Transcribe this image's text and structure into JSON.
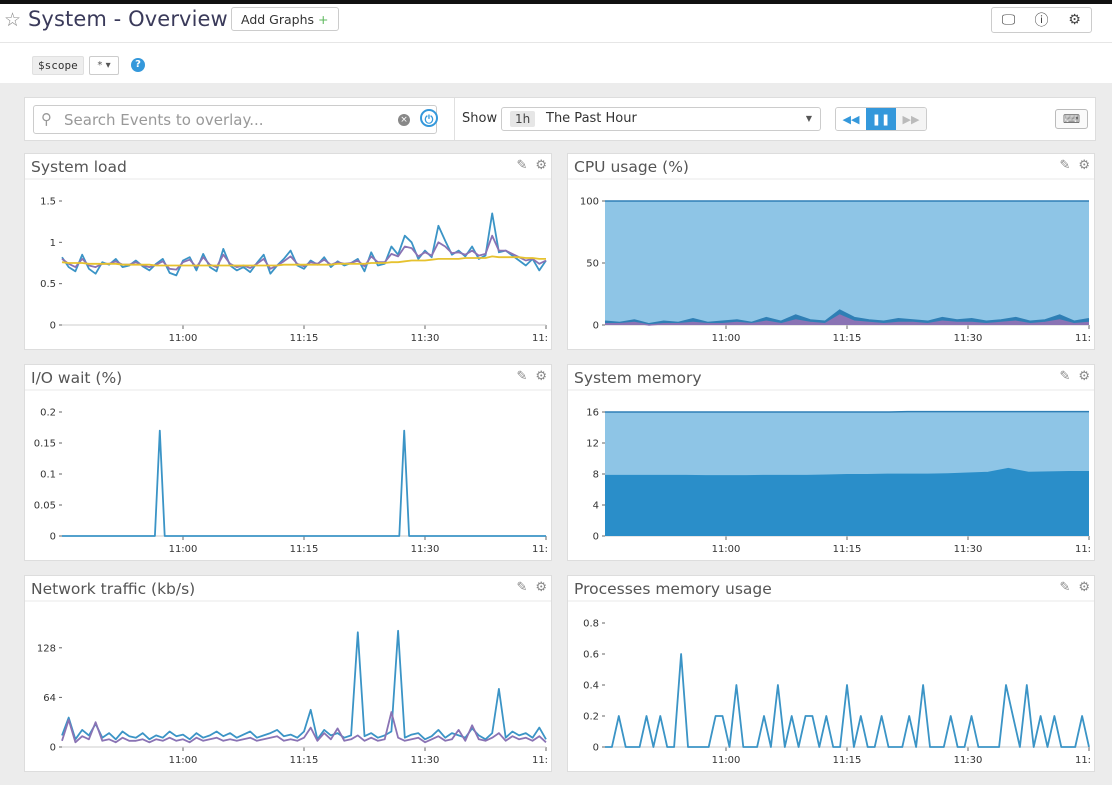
{
  "header": {
    "title": "System - Overview",
    "add_graphs_label": "Add Graphs",
    "add_graphs_plus": "+"
  },
  "scope": {
    "variable": "$scope",
    "value": "*"
  },
  "search": {
    "placeholder": "Search Events to overlay..."
  },
  "timeframe": {
    "show_label": "Show",
    "badge": "1h",
    "label": "The Past Hour"
  },
  "icons": {
    "star": "star-icon",
    "tv": "monitor-icon",
    "info": "info-icon",
    "gear": "gear-icon",
    "help": "help-icon",
    "search": "search-icon",
    "clear": "clear-icon",
    "power": "power-icon",
    "rewind": "rewind-icon",
    "pause": "pause-icon",
    "forward": "forward-icon",
    "keyboard": "keyboard-icon",
    "pencil": "pencil-icon"
  },
  "colors": {
    "blue": "#3b94c6",
    "purple": "#8a73b4",
    "yellow": "#e6c22f",
    "area_light": "#8ec5e6",
    "area_dark": "#2a8ec9"
  },
  "chart_data": [
    {
      "id": "system-load",
      "type": "line",
      "title": "System load",
      "xticks": [
        "11:00",
        "11:15",
        "11:30",
        "11:"
      ],
      "yticks": [
        "1.5",
        "1",
        "0.5",
        "0"
      ],
      "ylim": [
        0,
        1.5
      ],
      "series": [
        {
          "color": "#3b94c6",
          "values": [
            0.82,
            0.7,
            0.65,
            0.85,
            0.68,
            0.62,
            0.76,
            0.73,
            0.8,
            0.7,
            0.72,
            0.78,
            0.71,
            0.66,
            0.74,
            0.8,
            0.63,
            0.6,
            0.78,
            0.82,
            0.66,
            0.86,
            0.7,
            0.65,
            0.92,
            0.72,
            0.66,
            0.7,
            0.64,
            0.75,
            0.85,
            0.62,
            0.72,
            0.8,
            0.9,
            0.72,
            0.68,
            0.78,
            0.73,
            0.82,
            0.7,
            0.77,
            0.72,
            0.75,
            0.8,
            0.65,
            0.88,
            0.72,
            0.74,
            0.95,
            0.85,
            1.08,
            1.0,
            0.8,
            0.9,
            0.82,
            1.2,
            1.02,
            0.85,
            0.9,
            0.83,
            0.95,
            0.8,
            0.84,
            1.35,
            0.88,
            0.9,
            0.84,
            0.78,
            0.72,
            0.8,
            0.66,
            0.78
          ]
        },
        {
          "color": "#8a73b4",
          "values": [
            0.8,
            0.74,
            0.7,
            0.8,
            0.72,
            0.7,
            0.74,
            0.74,
            0.77,
            0.73,
            0.73,
            0.76,
            0.72,
            0.7,
            0.73,
            0.77,
            0.68,
            0.67,
            0.76,
            0.79,
            0.7,
            0.82,
            0.73,
            0.7,
            0.85,
            0.74,
            0.7,
            0.72,
            0.69,
            0.74,
            0.8,
            0.68,
            0.72,
            0.77,
            0.83,
            0.74,
            0.71,
            0.76,
            0.74,
            0.79,
            0.73,
            0.76,
            0.74,
            0.75,
            0.78,
            0.71,
            0.83,
            0.76,
            0.76,
            0.86,
            0.83,
            0.95,
            0.93,
            0.83,
            0.88,
            0.84,
            1.0,
            0.95,
            0.87,
            0.88,
            0.85,
            0.9,
            0.84,
            0.86,
            1.08,
            0.9,
            0.9,
            0.86,
            0.82,
            0.78,
            0.8,
            0.74,
            0.78
          ]
        },
        {
          "color": "#e6c22f",
          "values": [
            0.76,
            0.75,
            0.75,
            0.75,
            0.74,
            0.74,
            0.74,
            0.74,
            0.74,
            0.73,
            0.73,
            0.73,
            0.73,
            0.73,
            0.72,
            0.72,
            0.72,
            0.72,
            0.72,
            0.72,
            0.72,
            0.72,
            0.72,
            0.72,
            0.72,
            0.72,
            0.72,
            0.72,
            0.72,
            0.72,
            0.72,
            0.72,
            0.72,
            0.73,
            0.73,
            0.73,
            0.73,
            0.73,
            0.73,
            0.73,
            0.73,
            0.74,
            0.74,
            0.74,
            0.74,
            0.74,
            0.75,
            0.75,
            0.75,
            0.76,
            0.76,
            0.77,
            0.78,
            0.78,
            0.78,
            0.79,
            0.8,
            0.8,
            0.8,
            0.8,
            0.81,
            0.81,
            0.81,
            0.81,
            0.83,
            0.82,
            0.82,
            0.82,
            0.82,
            0.81,
            0.81,
            0.8,
            0.8
          ]
        }
      ]
    },
    {
      "id": "cpu-usage",
      "type": "area",
      "title": "CPU usage (%)",
      "xticks": [
        "11:00",
        "11:15",
        "11:30",
        "11:"
      ],
      "yticks": [
        "100",
        "50",
        "0"
      ],
      "ylim": [
        0,
        100
      ],
      "series": [
        {
          "color": "#8ec5e6",
          "line": "#2f7fb5",
          "values": [
            100,
            100,
            100,
            100,
            100,
            100,
            100,
            100,
            100,
            100,
            100,
            100
          ]
        },
        {
          "color": "#2f7fb5",
          "line": "#2f7fb5",
          "values": [
            3,
            2,
            4,
            1,
            3,
            2,
            5,
            2,
            3,
            4,
            2,
            6,
            3,
            8,
            4,
            3,
            12,
            6,
            4,
            3,
            5,
            4,
            3,
            6,
            4,
            5,
            3,
            4,
            6,
            3,
            4,
            8,
            3,
            5
          ]
        },
        {
          "color": "#8a73b4",
          "line": "#8a73b4",
          "values": [
            1,
            1,
            2,
            0,
            1,
            1,
            2,
            1,
            1,
            2,
            1,
            3,
            1,
            4,
            2,
            1,
            8,
            3,
            2,
            1,
            2,
            2,
            1,
            3,
            2,
            2,
            1,
            2,
            3,
            1,
            2,
            4,
            1,
            2
          ]
        }
      ]
    },
    {
      "id": "io-wait",
      "type": "line",
      "title": "I/O wait (%)",
      "xticks": [
        "11:00",
        "11:15",
        "11:30",
        "11:"
      ],
      "yticks": [
        "0.2",
        "0.15",
        "0.1",
        "0.05",
        "0"
      ],
      "ylim": [
        0,
        0.2
      ],
      "series": [
        {
          "color": "#3b94c6",
          "values": [
            0,
            0,
            0,
            0,
            0,
            0,
            0,
            0,
            0,
            0,
            0,
            0,
            0,
            0,
            0,
            0,
            0,
            0,
            0,
            0,
            0.17,
            0,
            0,
            0,
            0,
            0,
            0,
            0,
            0,
            0,
            0,
            0,
            0,
            0,
            0,
            0,
            0,
            0,
            0,
            0,
            0,
            0,
            0,
            0,
            0,
            0,
            0,
            0,
            0,
            0,
            0,
            0,
            0,
            0,
            0,
            0,
            0,
            0,
            0,
            0,
            0,
            0,
            0,
            0,
            0,
            0,
            0,
            0,
            0,
            0,
            0.17,
            0,
            0,
            0,
            0,
            0,
            0,
            0,
            0,
            0,
            0,
            0,
            0,
            0,
            0,
            0,
            0,
            0,
            0,
            0,
            0,
            0,
            0,
            0,
            0,
            0,
            0,
            0,
            0,
            0
          ]
        }
      ]
    },
    {
      "id": "system-memory",
      "type": "area",
      "title": "System memory",
      "xticks": [
        "11:00",
        "11:15",
        "11:30",
        "11:"
      ],
      "yticks": [
        "16",
        "12",
        "8",
        "4",
        "0"
      ],
      "ylim": [
        0,
        16
      ],
      "series": [
        {
          "color": "#8ec5e6",
          "line": "#2f7fb5",
          "values": [
            16,
            16,
            16,
            16,
            16,
            16,
            16,
            16,
            16,
            16,
            16,
            16,
            16,
            16,
            16,
            16.05,
            16.05,
            16.05,
            16.05,
            16.05,
            16.05,
            16.05,
            16.05,
            16.05,
            16.05
          ]
        },
        {
          "color": "#2a8ec9",
          "line": "#2a8ec9",
          "values": [
            7.8,
            7.8,
            7.8,
            7.8,
            7.8,
            7.75,
            7.75,
            7.75,
            7.8,
            7.8,
            7.8,
            7.85,
            7.9,
            7.9,
            7.95,
            7.95,
            7.95,
            8.0,
            8.1,
            8.2,
            8.7,
            8.2,
            8.25,
            8.3,
            8.3
          ]
        }
      ]
    },
    {
      "id": "network-traffic",
      "type": "line",
      "title": "Network traffic (kb/s)",
      "xticks": [
        "11:00",
        "11:15",
        "11:30",
        "11:"
      ],
      "yticks": [
        "128",
        "64",
        "0"
      ],
      "ylim": [
        0,
        160
      ],
      "series": [
        {
          "color": "#3b94c6",
          "values": [
            15,
            38,
            10,
            22,
            15,
            30,
            12,
            18,
            10,
            20,
            14,
            12,
            18,
            10,
            15,
            12,
            20,
            14,
            16,
            10,
            18,
            12,
            15,
            20,
            14,
            18,
            12,
            16,
            20,
            12,
            15,
            18,
            22,
            14,
            16,
            12,
            20,
            48,
            10,
            22,
            15,
            18,
            12,
            15,
            148,
            14,
            18,
            12,
            15,
            20,
            150,
            12,
            16,
            18,
            10,
            14,
            22,
            12,
            18,
            15,
            12,
            24,
            15,
            10,
            18,
            75,
            12,
            20,
            15,
            18,
            12,
            25,
            10
          ]
        },
        {
          "color": "#8a73b4",
          "values": [
            8,
            35,
            6,
            14,
            10,
            32,
            8,
            10,
            6,
            12,
            8,
            8,
            10,
            6,
            10,
            8,
            12,
            8,
            10,
            6,
            12,
            8,
            10,
            12,
            8,
            10,
            8,
            10,
            12,
            8,
            10,
            12,
            14,
            8,
            10,
            8,
            12,
            25,
            8,
            18,
            10,
            24,
            8,
            10,
            15,
            8,
            12,
            8,
            10,
            45,
            12,
            8,
            10,
            12,
            6,
            10,
            14,
            8,
            10,
            22,
            8,
            28,
            10,
            8,
            12,
            18,
            8,
            14,
            10,
            12,
            8,
            14,
            6
          ]
        }
      ]
    },
    {
      "id": "processes-memory",
      "type": "line",
      "title": "Processes memory usage",
      "xticks": [
        "11:00",
        "11:15",
        "11:30",
        "11:"
      ],
      "yticks": [
        "0.8",
        "0.6",
        "0.4",
        "0.2",
        "0"
      ],
      "ylim": [
        0,
        0.8
      ],
      "series": [
        {
          "color": "#3b94c6",
          "values": [
            0,
            0,
            0.2,
            0,
            0,
            0,
            0.2,
            0,
            0.2,
            0,
            0,
            0.6,
            0,
            0,
            0,
            0,
            0.2,
            0.2,
            0,
            0.4,
            0,
            0,
            0,
            0.2,
            0,
            0.4,
            0,
            0.2,
            0,
            0.2,
            0.2,
            0,
            0.2,
            0,
            0,
            0.4,
            0,
            0.2,
            0,
            0,
            0.2,
            0,
            0,
            0,
            0.2,
            0,
            0.4,
            0,
            0,
            0,
            0.2,
            0,
            0,
            0.2,
            0,
            0,
            0,
            0,
            0.4,
            0.2,
            0,
            0.4,
            0,
            0.2,
            0,
            0.2,
            0,
            0,
            0,
            0.2,
            0
          ]
        }
      ]
    }
  ]
}
